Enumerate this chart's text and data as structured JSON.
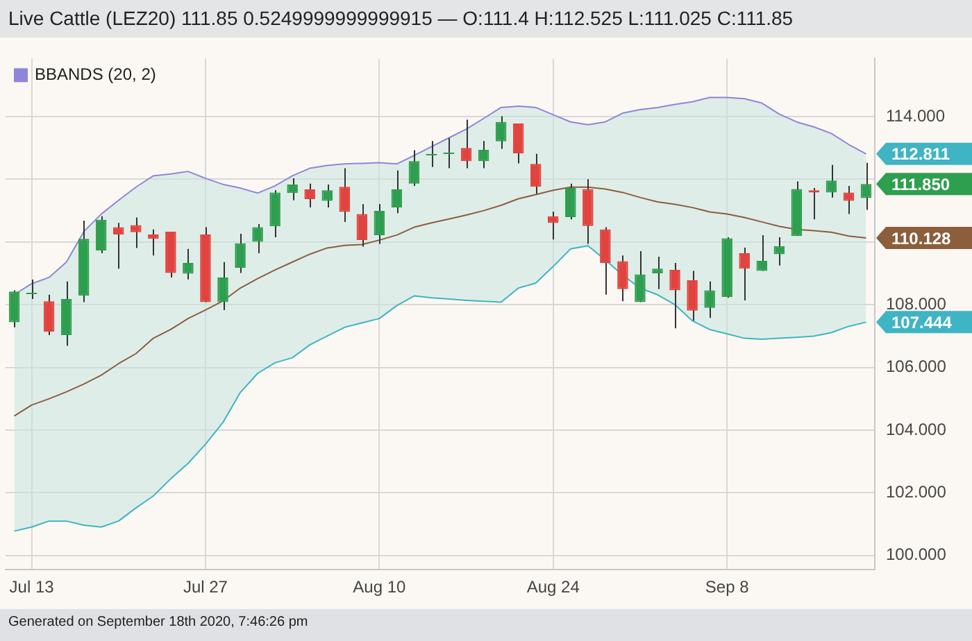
{
  "chart_data": {
    "type": "candlestick",
    "title": "Live Cattle (LEZ20) 111.85 0.5249999999999915 — O:111.4 H:112.525 L:111.025 C:111.85",
    "categories": [
      null,
      "Jul 13",
      null,
      null,
      null,
      null,
      null,
      null,
      null,
      null,
      null,
      "Jul 27",
      null,
      null,
      null,
      null,
      null,
      null,
      null,
      null,
      null,
      "Aug 10",
      null,
      null,
      null,
      null,
      null,
      null,
      null,
      null,
      null,
      "Aug 24",
      null,
      null,
      null,
      null,
      null,
      null,
      null,
      null,
      null,
      "Sep 8",
      null,
      null,
      null,
      null,
      null,
      null,
      null,
      null
    ],
    "ohlc": [
      [
        107.44,
        108.46,
        107.28,
        108.42
      ],
      [
        108.39,
        108.8,
        108.18,
        108.39
      ],
      [
        108.11,
        108.32,
        107.03,
        107.14
      ],
      [
        107.03,
        108.74,
        106.69,
        108.18
      ],
      [
        108.29,
        110.68,
        108.08,
        110.1
      ],
      [
        109.73,
        110.82,
        109.64,
        110.71
      ],
      [
        110.47,
        110.61,
        109.15,
        110.24
      ],
      [
        110.54,
        110.78,
        109.81,
        110.31
      ],
      [
        110.24,
        110.4,
        109.57,
        110.1
      ],
      [
        110.33,
        110.33,
        108.87,
        109.01
      ],
      [
        108.99,
        109.78,
        108.81,
        109.33
      ],
      [
        110.24,
        110.47,
        108.08,
        108.08
      ],
      [
        108.08,
        109.36,
        107.83,
        108.87
      ],
      [
        109.18,
        110.26,
        109.01,
        109.96
      ],
      [
        110.01,
        110.57,
        109.64,
        110.47
      ],
      [
        110.5,
        111.65,
        110.15,
        111.58
      ],
      [
        111.56,
        112.03,
        111.33,
        111.83
      ],
      [
        111.68,
        111.86,
        111.1,
        111.37
      ],
      [
        111.31,
        111.83,
        111.1,
        111.65
      ],
      [
        111.76,
        112.35,
        110.64,
        110.96
      ],
      [
        110.89,
        111.21,
        109.85,
        110.06
      ],
      [
        110.22,
        111.21,
        109.94,
        110.99
      ],
      [
        111.1,
        112.28,
        110.92,
        111.68
      ],
      [
        111.86,
        112.93,
        111.79,
        112.58
      ],
      [
        112.81,
        113.22,
        112.39,
        112.81
      ],
      [
        112.83,
        113.32,
        112.35,
        112.83
      ],
      [
        113.0,
        113.9,
        112.35,
        112.58
      ],
      [
        112.58,
        113.22,
        112.35,
        112.94
      ],
      [
        113.21,
        114.01,
        112.97,
        113.83
      ],
      [
        113.78,
        113.78,
        112.51,
        112.83
      ],
      [
        112.49,
        112.81,
        111.54,
        111.76
      ],
      [
        110.82,
        110.97,
        110.08,
        110.61
      ],
      [
        110.79,
        111.86,
        110.72,
        111.72
      ],
      [
        111.69,
        112.0,
        109.94,
        110.51
      ],
      [
        110.4,
        110.47,
        108.32,
        109.33
      ],
      [
        109.39,
        109.57,
        108.11,
        108.5
      ],
      [
        108.08,
        109.71,
        108.08,
        108.97
      ],
      [
        109.0,
        109.53,
        108.5,
        109.15
      ],
      [
        109.11,
        109.33,
        107.25,
        108.46
      ],
      [
        108.78,
        109.08,
        107.49,
        107.81
      ],
      [
        107.9,
        108.74,
        107.58,
        108.46
      ],
      [
        108.25,
        110.15,
        108.22,
        110.12
      ],
      [
        109.64,
        109.82,
        108.14,
        109.15
      ],
      [
        109.08,
        110.22,
        109.08,
        109.4
      ],
      [
        109.61,
        110.15,
        109.25,
        109.87
      ],
      [
        110.19,
        111.93,
        110.19,
        111.69
      ],
      [
        111.65,
        111.72,
        110.72,
        111.58
      ],
      [
        111.58,
        112.46,
        111.42,
        111.96
      ],
      [
        111.58,
        111.79,
        110.89,
        111.31
      ],
      [
        111.4,
        112.525,
        111.025,
        111.85
      ]
    ],
    "value_labels": [
      null,
      null,
      null,
      null,
      null,
      null,
      null,
      null,
      null,
      null,
      null,
      null,
      null,
      null,
      null,
      null,
      null,
      null,
      null,
      null,
      null,
      null,
      null,
      null,
      null,
      null,
      null,
      null,
      null,
      null,
      null,
      null,
      null,
      null,
      null,
      null,
      null,
      null,
      null,
      null,
      null,
      null,
      null,
      null,
      null,
      null,
      null,
      null,
      null,
      "111.850"
    ],
    "colors": [
      "#2e9e4f",
      "#2e9e4f",
      "#e2433f",
      "#2e9e4f",
      "#2e9e4f",
      "#2e9e4f",
      "#e2433f",
      "#e2433f",
      "#e2433f",
      "#e2433f",
      "#2e9e4f",
      "#e2433f",
      "#2e9e4f",
      "#2e9e4f",
      "#2e9e4f",
      "#2e9e4f",
      "#2e9e4f",
      "#e2433f",
      "#2e9e4f",
      "#e2433f",
      "#e2433f",
      "#2e9e4f",
      "#2e9e4f",
      "#2e9e4f",
      "#2e9e4f",
      "#2e9e4f",
      "#e2433f",
      "#2e9e4f",
      "#2e9e4f",
      "#e2433f",
      "#e2433f",
      "#e2433f",
      "#2e9e4f",
      "#e2433f",
      "#e2433f",
      "#e2433f",
      "#2e9e4f",
      "#2e9e4f",
      "#e2433f",
      "#e2433f",
      "#2e9e4f",
      "#2e9e4f",
      "#e2433f",
      "#2e9e4f",
      "#2e9e4f",
      "#2e9e4f",
      "#e2433f",
      "#2e9e4f",
      "#e2433f",
      "#2e9e4f"
    ],
    "series": [
      {
        "type": "line",
        "name": "BBANDS (20, 2)",
        "color": "#8e86d8",
        "value_labels": [
          null,
          null,
          null,
          null,
          null,
          null,
          null,
          null,
          null,
          null,
          null,
          null,
          null,
          null,
          null,
          null,
          null,
          null,
          null,
          null,
          null,
          null,
          null,
          null,
          null,
          null,
          null,
          null,
          null,
          null,
          null,
          null,
          null,
          null,
          null,
          null,
          null,
          null,
          null,
          null,
          null,
          null,
          null,
          null,
          null,
          null,
          null,
          null,
          null,
          "112.811"
        ],
        "values": [
          108.32,
          108.67,
          108.87,
          109.36,
          110.33,
          110.89,
          111.33,
          111.75,
          112.11,
          112.17,
          112.25,
          112.03,
          111.84,
          111.72,
          111.56,
          111.79,
          112.11,
          112.35,
          112.44,
          112.49,
          112.51,
          112.53,
          112.49,
          112.76,
          113.04,
          113.32,
          113.6,
          113.94,
          114.29,
          114.33,
          114.29,
          114.06,
          113.83,
          113.74,
          113.83,
          114.11,
          114.22,
          114.29,
          114.39,
          114.47,
          114.61,
          114.61,
          114.57,
          114.43,
          114.08,
          113.83,
          113.67,
          113.46,
          113.11,
          112.811
        ]
      },
      {
        "type": "line",
        "color": "#8b5e3c",
        "value_labels": [
          null,
          null,
          null,
          null,
          null,
          null,
          null,
          null,
          null,
          null,
          null,
          null,
          null,
          null,
          null,
          null,
          null,
          null,
          null,
          null,
          null,
          null,
          null,
          null,
          null,
          null,
          null,
          null,
          null,
          null,
          null,
          null,
          null,
          null,
          null,
          null,
          null,
          null,
          null,
          null,
          null,
          null,
          null,
          null,
          null,
          null,
          null,
          null,
          null,
          "110.128"
        ],
        "upper": [
          108.32,
          108.67,
          108.87,
          109.36,
          110.33,
          110.89,
          111.33,
          111.75,
          112.11,
          112.17,
          112.25,
          112.03,
          111.84,
          111.72,
          111.56,
          111.79,
          112.11,
          112.35,
          112.44,
          112.49,
          112.51,
          112.53,
          112.49,
          112.76,
          113.04,
          113.32,
          113.6,
          113.94,
          114.29,
          114.33,
          114.29,
          114.06,
          113.83,
          113.74,
          113.83,
          114.11,
          114.22,
          114.29,
          114.39,
          114.47,
          114.61,
          114.61,
          114.57,
          114.43,
          114.08,
          113.83,
          113.67,
          113.46,
          113.11,
          112.811
        ],
        "lower": [
          100.78,
          100.91,
          101.1,
          101.1,
          100.97,
          100.91,
          101.1,
          101.52,
          101.9,
          102.45,
          102.94,
          103.55,
          104.24,
          105.2,
          105.81,
          106.15,
          106.31,
          106.72,
          107.0,
          107.28,
          107.42,
          107.56,
          107.97,
          108.28,
          108.22,
          108.18,
          108.14,
          108.11,
          108.08,
          108.53,
          108.69,
          109.22,
          109.78,
          109.88,
          109.43,
          108.94,
          108.53,
          108.32,
          108.0,
          107.49,
          107.21,
          107.07,
          106.93,
          106.9,
          106.93,
          106.96,
          107.0,
          107.11,
          107.31,
          107.444
        ],
        "values": [
          104.45,
          104.8,
          105.0,
          105.22,
          105.47,
          105.75,
          106.12,
          106.44,
          106.93,
          107.21,
          107.56,
          107.83,
          108.12,
          108.53,
          108.83,
          109.11,
          109.36,
          109.61,
          109.81,
          109.89,
          109.92,
          110.06,
          110.22,
          110.47,
          110.61,
          110.73,
          110.86,
          111.0,
          111.17,
          111.38,
          111.51,
          111.65,
          111.75,
          111.75,
          111.69,
          111.58,
          111.42,
          111.28,
          111.2,
          111.1,
          110.96,
          110.89,
          110.78,
          110.64,
          110.5,
          110.4,
          110.36,
          110.31,
          110.19,
          110.128
        ]
      },
      {
        "type": "line",
        "color": "#3fb4c4",
        "value_labels": [
          null,
          null,
          null,
          null,
          null,
          null,
          null,
          null,
          null,
          null,
          null,
          null,
          null,
          null,
          null,
          null,
          null,
          null,
          null,
          null,
          null,
          null,
          null,
          null,
          null,
          null,
          null,
          null,
          null,
          null,
          null,
          null,
          null,
          null,
          null,
          null,
          null,
          null,
          null,
          null,
          null,
          null,
          null,
          null,
          null,
          null,
          null,
          null,
          null,
          "107.444"
        ],
        "values": [
          100.78,
          100.91,
          101.1,
          101.1,
          100.97,
          100.91,
          101.1,
          101.52,
          101.9,
          102.45,
          102.94,
          103.55,
          104.24,
          105.2,
          105.81,
          106.15,
          106.31,
          106.72,
          107.0,
          107.28,
          107.42,
          107.56,
          107.97,
          108.28,
          108.22,
          108.18,
          108.14,
          108.11,
          108.08,
          108.53,
          108.69,
          109.22,
          109.78,
          109.88,
          109.43,
          108.94,
          108.53,
          108.32,
          108.0,
          107.49,
          107.21,
          107.07,
          106.93,
          106.9,
          106.93,
          106.96,
          107.0,
          107.11,
          107.31,
          107.444
        ]
      }
    ],
    "ylim": [
      99.55,
      115.85
    ],
    "yticks": [
      {
        "value": 100,
        "label": "100.000"
      },
      {
        "value": 102,
        "label": "102.000"
      },
      {
        "value": 104,
        "label": "104.000"
      },
      {
        "value": 106,
        "label": "106.000"
      },
      {
        "value": 108,
        "label": "108.000"
      },
      {
        "value": 110,
        "label": null
      },
      {
        "value": 112,
        "label": null
      },
      {
        "value": 114,
        "label": "114.000"
      }
    ],
    "grid": true,
    "legend": "top left",
    "annotations": [
      "Generated on September 18th 2020, 7:46:26 pm"
    ]
  }
}
